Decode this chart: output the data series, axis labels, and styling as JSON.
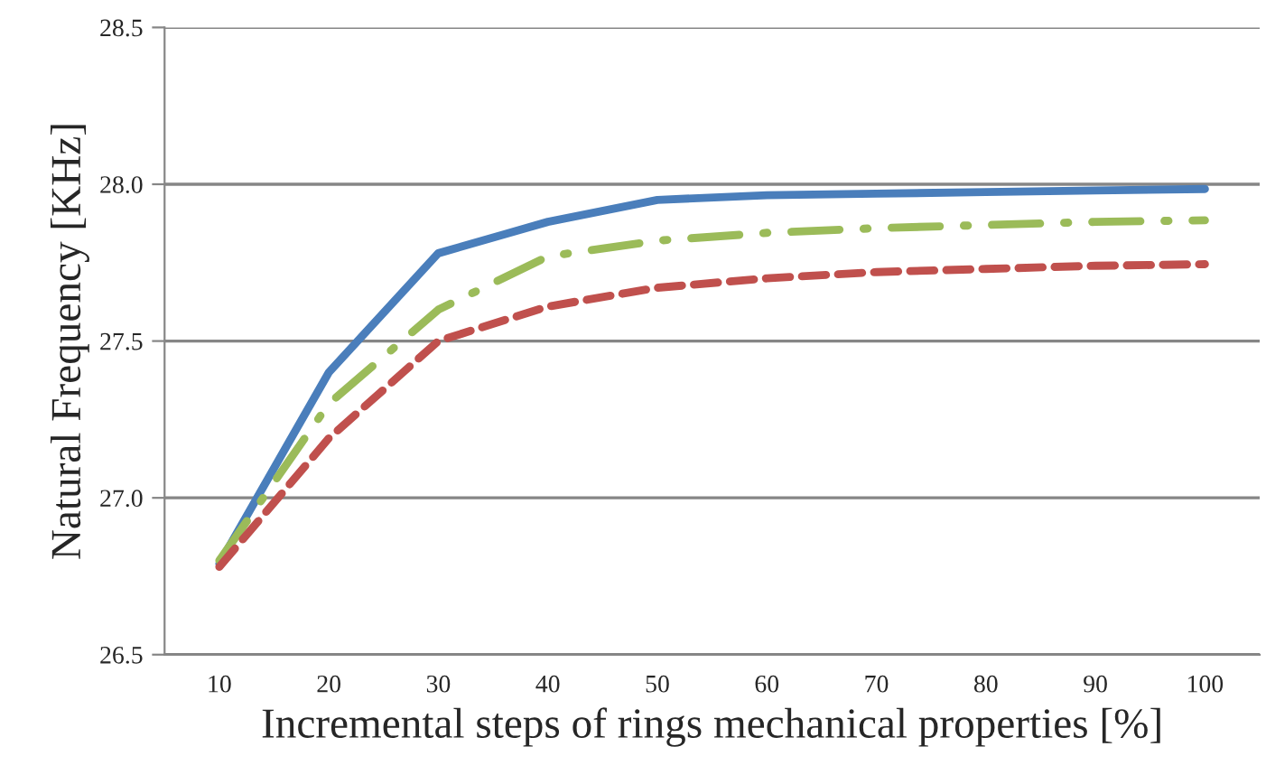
{
  "chart_data": {
    "type": "line",
    "xlabel": "Incremental steps of rings mechanical properties [%]",
    "ylabel": "Natural Frequency [KHz]",
    "categories": [
      "10",
      "20",
      "30",
      "40",
      "50",
      "60",
      "70",
      "80",
      "90",
      "100"
    ],
    "series": [
      {
        "color": "#4a7ebb",
        "line_style": "solid",
        "values": [
          26.79,
          27.4,
          27.78,
          27.88,
          27.95,
          27.965,
          27.97,
          27.975,
          27.98,
          27.985
        ]
      },
      {
        "color": "#9bbb59",
        "line_style": "dashdot",
        "values": [
          26.8,
          27.3,
          27.6,
          27.77,
          27.82,
          27.845,
          27.86,
          27.87,
          27.88,
          27.885
        ]
      },
      {
        "color": "#c0504d",
        "line_style": "dashed",
        "values": [
          26.78,
          27.19,
          27.5,
          27.61,
          27.67,
          27.7,
          27.72,
          27.73,
          27.74,
          27.745
        ]
      }
    ],
    "ylim": [
      26.5,
      28.5
    ],
    "yticks": [
      {
        "value": 26.5,
        "label": "26.5"
      },
      {
        "value": 27.0,
        "label": "27.0"
      },
      {
        "value": 27.5,
        "label": "27.5"
      },
      {
        "value": 28.0,
        "label": "28.0"
      },
      {
        "value": 28.5,
        "label": "28.5"
      }
    ],
    "grid": "y",
    "legend": false
  }
}
